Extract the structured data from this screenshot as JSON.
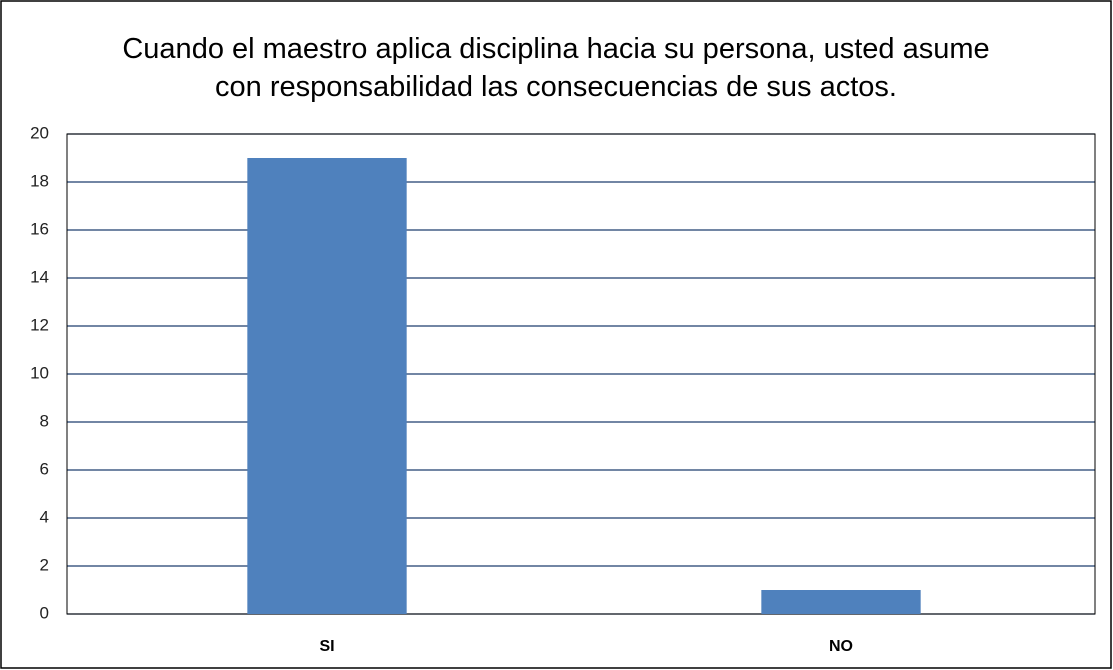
{
  "chart_data": {
    "type": "bar",
    "title": "Cuando el maestro aplica disciplina hacia su persona, usted asume con responsabilidad las consecuencias de sus actos.",
    "categories": [
      "SI",
      "NO"
    ],
    "values": [
      19,
      1
    ],
    "color": "#4f81bd",
    "ylim": [
      0,
      20
    ],
    "yticks": [
      0,
      2,
      4,
      6,
      8,
      10,
      12,
      14,
      16,
      18,
      20
    ],
    "grid": true
  }
}
